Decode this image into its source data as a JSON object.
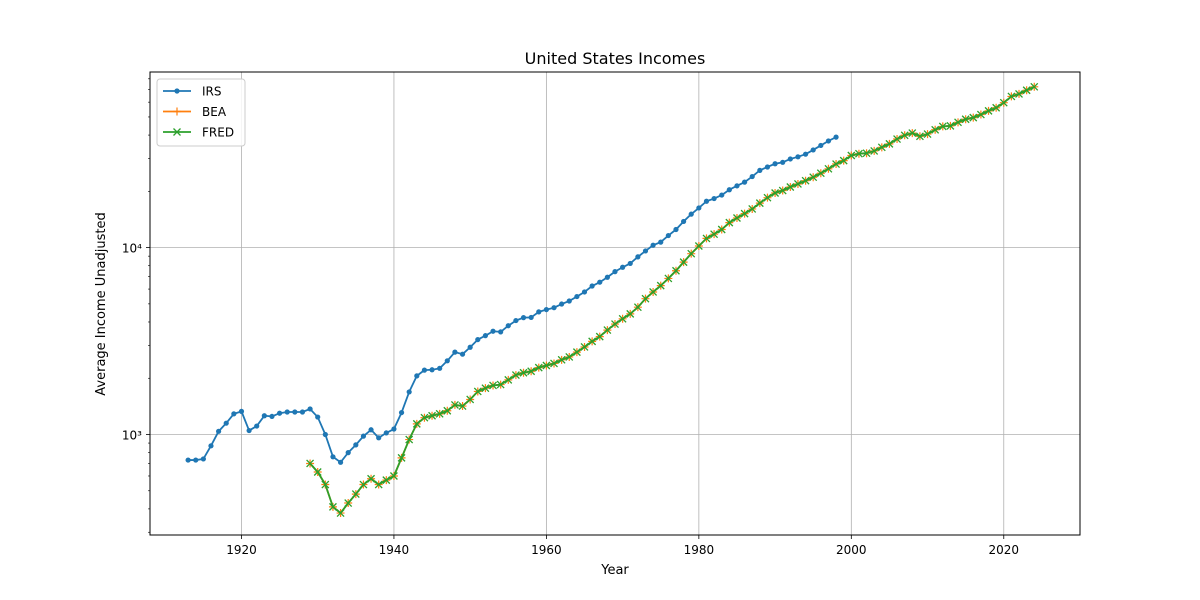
{
  "chart_data": {
    "type": "line",
    "title": "United States Incomes",
    "xlabel": "Year",
    "ylabel": "Average Income Unadjusted",
    "xlim": [
      1908,
      2030
    ],
    "ylim": [
      290,
      87000
    ],
    "yscale": "log",
    "grid": true,
    "legend_position": "upper-left",
    "x_ticks": [
      1920,
      1940,
      1960,
      1980,
      2000,
      2020
    ],
    "y_ticks": [
      {
        "value": 1000,
        "label": "10³"
      },
      {
        "value": 10000,
        "label": "10⁴"
      }
    ],
    "series": [
      {
        "name": "IRS",
        "color": "#1f77b4",
        "marker": "dot",
        "points": [
          [
            1913,
            730
          ],
          [
            1914,
            730
          ],
          [
            1915,
            740
          ],
          [
            1916,
            870
          ],
          [
            1917,
            1040
          ],
          [
            1918,
            1150
          ],
          [
            1919,
            1290
          ],
          [
            1920,
            1330
          ],
          [
            1921,
            1050
          ],
          [
            1922,
            1110
          ],
          [
            1923,
            1260
          ],
          [
            1924,
            1250
          ],
          [
            1925,
            1300
          ],
          [
            1926,
            1320
          ],
          [
            1927,
            1320
          ],
          [
            1928,
            1320
          ],
          [
            1929,
            1370
          ],
          [
            1930,
            1240
          ],
          [
            1931,
            1000
          ],
          [
            1932,
            760
          ],
          [
            1933,
            710
          ],
          [
            1934,
            800
          ],
          [
            1935,
            880
          ],
          [
            1936,
            980
          ],
          [
            1937,
            1060
          ],
          [
            1938,
            960
          ],
          [
            1939,
            1020
          ],
          [
            1940,
            1070
          ],
          [
            1941,
            1310
          ],
          [
            1942,
            1690
          ],
          [
            1943,
            2060
          ],
          [
            1944,
            2210
          ],
          [
            1945,
            2220
          ],
          [
            1946,
            2260
          ],
          [
            1947,
            2480
          ],
          [
            1948,
            2760
          ],
          [
            1949,
            2690
          ],
          [
            1950,
            2930
          ],
          [
            1951,
            3220
          ],
          [
            1952,
            3380
          ],
          [
            1953,
            3570
          ],
          [
            1954,
            3540
          ],
          [
            1955,
            3820
          ],
          [
            1956,
            4070
          ],
          [
            1957,
            4220
          ],
          [
            1958,
            4230
          ],
          [
            1959,
            4530
          ],
          [
            1960,
            4660
          ],
          [
            1961,
            4770
          ],
          [
            1962,
            4990
          ],
          [
            1963,
            5180
          ],
          [
            1964,
            5470
          ],
          [
            1965,
            5790
          ],
          [
            1966,
            6230
          ],
          [
            1967,
            6530
          ],
          [
            1968,
            6940
          ],
          [
            1969,
            7440
          ],
          [
            1970,
            7850
          ],
          [
            1971,
            8230
          ],
          [
            1972,
            8920
          ],
          [
            1973,
            9600
          ],
          [
            1974,
            10300
          ],
          [
            1975,
            10700
          ],
          [
            1976,
            11600
          ],
          [
            1977,
            12500
          ],
          [
            1978,
            13800
          ],
          [
            1979,
            15100
          ],
          [
            1980,
            16300
          ],
          [
            1981,
            17700
          ],
          [
            1982,
            18300
          ],
          [
            1983,
            19100
          ],
          [
            1984,
            20400
          ],
          [
            1985,
            21400
          ],
          [
            1986,
            22400
          ],
          [
            1987,
            24000
          ],
          [
            1988,
            25900
          ],
          [
            1989,
            27000
          ],
          [
            1990,
            28100
          ],
          [
            1991,
            28600
          ],
          [
            1992,
            29800
          ],
          [
            1993,
            30600
          ],
          [
            1994,
            31600
          ],
          [
            1995,
            33300
          ],
          [
            1996,
            35200
          ],
          [
            1997,
            37200
          ],
          [
            1998,
            39000
          ]
        ]
      },
      {
        "name": "BEA",
        "color": "#ff7f0e",
        "marker": "plus",
        "points": [
          [
            1929,
            700
          ],
          [
            1930,
            630
          ],
          [
            1931,
            540
          ],
          [
            1932,
            410
          ],
          [
            1933,
            380
          ],
          [
            1934,
            430
          ],
          [
            1935,
            480
          ],
          [
            1936,
            540
          ],
          [
            1937,
            580
          ],
          [
            1938,
            540
          ],
          [
            1939,
            570
          ],
          [
            1940,
            600
          ],
          [
            1941,
            750
          ],
          [
            1942,
            940
          ],
          [
            1943,
            1140
          ],
          [
            1944,
            1230
          ],
          [
            1945,
            1260
          ],
          [
            1946,
            1290
          ],
          [
            1947,
            1340
          ],
          [
            1948,
            1440
          ],
          [
            1949,
            1420
          ],
          [
            1950,
            1540
          ],
          [
            1951,
            1700
          ],
          [
            1952,
            1770
          ],
          [
            1953,
            1830
          ],
          [
            1954,
            1850
          ],
          [
            1955,
            1960
          ],
          [
            1956,
            2080
          ],
          [
            1957,
            2140
          ],
          [
            1958,
            2180
          ],
          [
            1959,
            2280
          ],
          [
            1960,
            2340
          ],
          [
            1961,
            2400
          ],
          [
            1962,
            2510
          ],
          [
            1963,
            2600
          ],
          [
            1964,
            2760
          ],
          [
            1965,
            2940
          ],
          [
            1966,
            3150
          ],
          [
            1967,
            3340
          ],
          [
            1968,
            3620
          ],
          [
            1969,
            3900
          ],
          [
            1970,
            4160
          ],
          [
            1971,
            4420
          ],
          [
            1972,
            4800
          ],
          [
            1973,
            5330
          ],
          [
            1974,
            5790
          ],
          [
            1975,
            6260
          ],
          [
            1976,
            6840
          ],
          [
            1977,
            7520
          ],
          [
            1978,
            8360
          ],
          [
            1979,
            9280
          ],
          [
            1980,
            10200
          ],
          [
            1981,
            11200
          ],
          [
            1982,
            11800
          ],
          [
            1983,
            12500
          ],
          [
            1984,
            13600
          ],
          [
            1985,
            14400
          ],
          [
            1986,
            15200
          ],
          [
            1987,
            16100
          ],
          [
            1988,
            17300
          ],
          [
            1989,
            18500
          ],
          [
            1990,
            19600
          ],
          [
            1991,
            20200
          ],
          [
            1992,
            21100
          ],
          [
            1993,
            21900
          ],
          [
            1994,
            22800
          ],
          [
            1995,
            23800
          ],
          [
            1996,
            25000
          ],
          [
            1997,
            26400
          ],
          [
            1998,
            28000
          ],
          [
            1999,
            29200
          ],
          [
            2000,
            31100
          ],
          [
            2001,
            31800
          ],
          [
            2002,
            32000
          ],
          [
            2003,
            32900
          ],
          [
            2004,
            34400
          ],
          [
            2005,
            35900
          ],
          [
            2006,
            38100
          ],
          [
            2007,
            39900
          ],
          [
            2008,
            41000
          ],
          [
            2009,
            39400
          ],
          [
            2010,
            40500
          ],
          [
            2011,
            42700
          ],
          [
            2012,
            44500
          ],
          [
            2013,
            44800
          ],
          [
            2014,
            46800
          ],
          [
            2015,
            48600
          ],
          [
            2016,
            49600
          ],
          [
            2017,
            51500
          ],
          [
            2018,
            53900
          ],
          [
            2019,
            56000
          ],
          [
            2020,
            59600
          ],
          [
            2021,
            64400
          ],
          [
            2022,
            66400
          ],
          [
            2023,
            69500
          ],
          [
            2024,
            72500
          ]
        ]
      },
      {
        "name": "FRED",
        "color": "#2ca02c",
        "marker": "x",
        "points": [
          [
            1929,
            700
          ],
          [
            1930,
            630
          ],
          [
            1931,
            540
          ],
          [
            1932,
            410
          ],
          [
            1933,
            380
          ],
          [
            1934,
            430
          ],
          [
            1935,
            480
          ],
          [
            1936,
            540
          ],
          [
            1937,
            580
          ],
          [
            1938,
            540
          ],
          [
            1939,
            570
          ],
          [
            1940,
            600
          ],
          [
            1941,
            750
          ],
          [
            1942,
            940
          ],
          [
            1943,
            1140
          ],
          [
            1944,
            1230
          ],
          [
            1945,
            1260
          ],
          [
            1946,
            1290
          ],
          [
            1947,
            1340
          ],
          [
            1948,
            1440
          ],
          [
            1949,
            1420
          ],
          [
            1950,
            1540
          ],
          [
            1951,
            1700
          ],
          [
            1952,
            1770
          ],
          [
            1953,
            1830
          ],
          [
            1954,
            1850
          ],
          [
            1955,
            1960
          ],
          [
            1956,
            2080
          ],
          [
            1957,
            2140
          ],
          [
            1958,
            2180
          ],
          [
            1959,
            2280
          ],
          [
            1960,
            2340
          ],
          [
            1961,
            2400
          ],
          [
            1962,
            2510
          ],
          [
            1963,
            2600
          ],
          [
            1964,
            2760
          ],
          [
            1965,
            2940
          ],
          [
            1966,
            3150
          ],
          [
            1967,
            3340
          ],
          [
            1968,
            3620
          ],
          [
            1969,
            3900
          ],
          [
            1970,
            4160
          ],
          [
            1971,
            4420
          ],
          [
            1972,
            4800
          ],
          [
            1973,
            5330
          ],
          [
            1974,
            5790
          ],
          [
            1975,
            6260
          ],
          [
            1976,
            6840
          ],
          [
            1977,
            7520
          ],
          [
            1978,
            8360
          ],
          [
            1979,
            9280
          ],
          [
            1980,
            10200
          ],
          [
            1981,
            11200
          ],
          [
            1982,
            11800
          ],
          [
            1983,
            12500
          ],
          [
            1984,
            13600
          ],
          [
            1985,
            14400
          ],
          [
            1986,
            15200
          ],
          [
            1987,
            16100
          ],
          [
            1988,
            17300
          ],
          [
            1989,
            18500
          ],
          [
            1990,
            19600
          ],
          [
            1991,
            20200
          ],
          [
            1992,
            21100
          ],
          [
            1993,
            21900
          ],
          [
            1994,
            22800
          ],
          [
            1995,
            23800
          ],
          [
            1996,
            25000
          ],
          [
            1997,
            26400
          ],
          [
            1998,
            28000
          ],
          [
            1999,
            29200
          ],
          [
            2000,
            31100
          ],
          [
            2001,
            31800
          ],
          [
            2002,
            32000
          ],
          [
            2003,
            32900
          ],
          [
            2004,
            34400
          ],
          [
            2005,
            35900
          ],
          [
            2006,
            38100
          ],
          [
            2007,
            39900
          ],
          [
            2008,
            41000
          ],
          [
            2009,
            39400
          ],
          [
            2010,
            40500
          ],
          [
            2011,
            42700
          ],
          [
            2012,
            44500
          ],
          [
            2013,
            44800
          ],
          [
            2014,
            46800
          ],
          [
            2015,
            48600
          ],
          [
            2016,
            49600
          ],
          [
            2017,
            51500
          ],
          [
            2018,
            53900
          ],
          [
            2019,
            56000
          ],
          [
            2020,
            59600
          ],
          [
            2021,
            64400
          ],
          [
            2022,
            66400
          ],
          [
            2023,
            69500
          ],
          [
            2024,
            72500
          ]
        ]
      }
    ]
  }
}
